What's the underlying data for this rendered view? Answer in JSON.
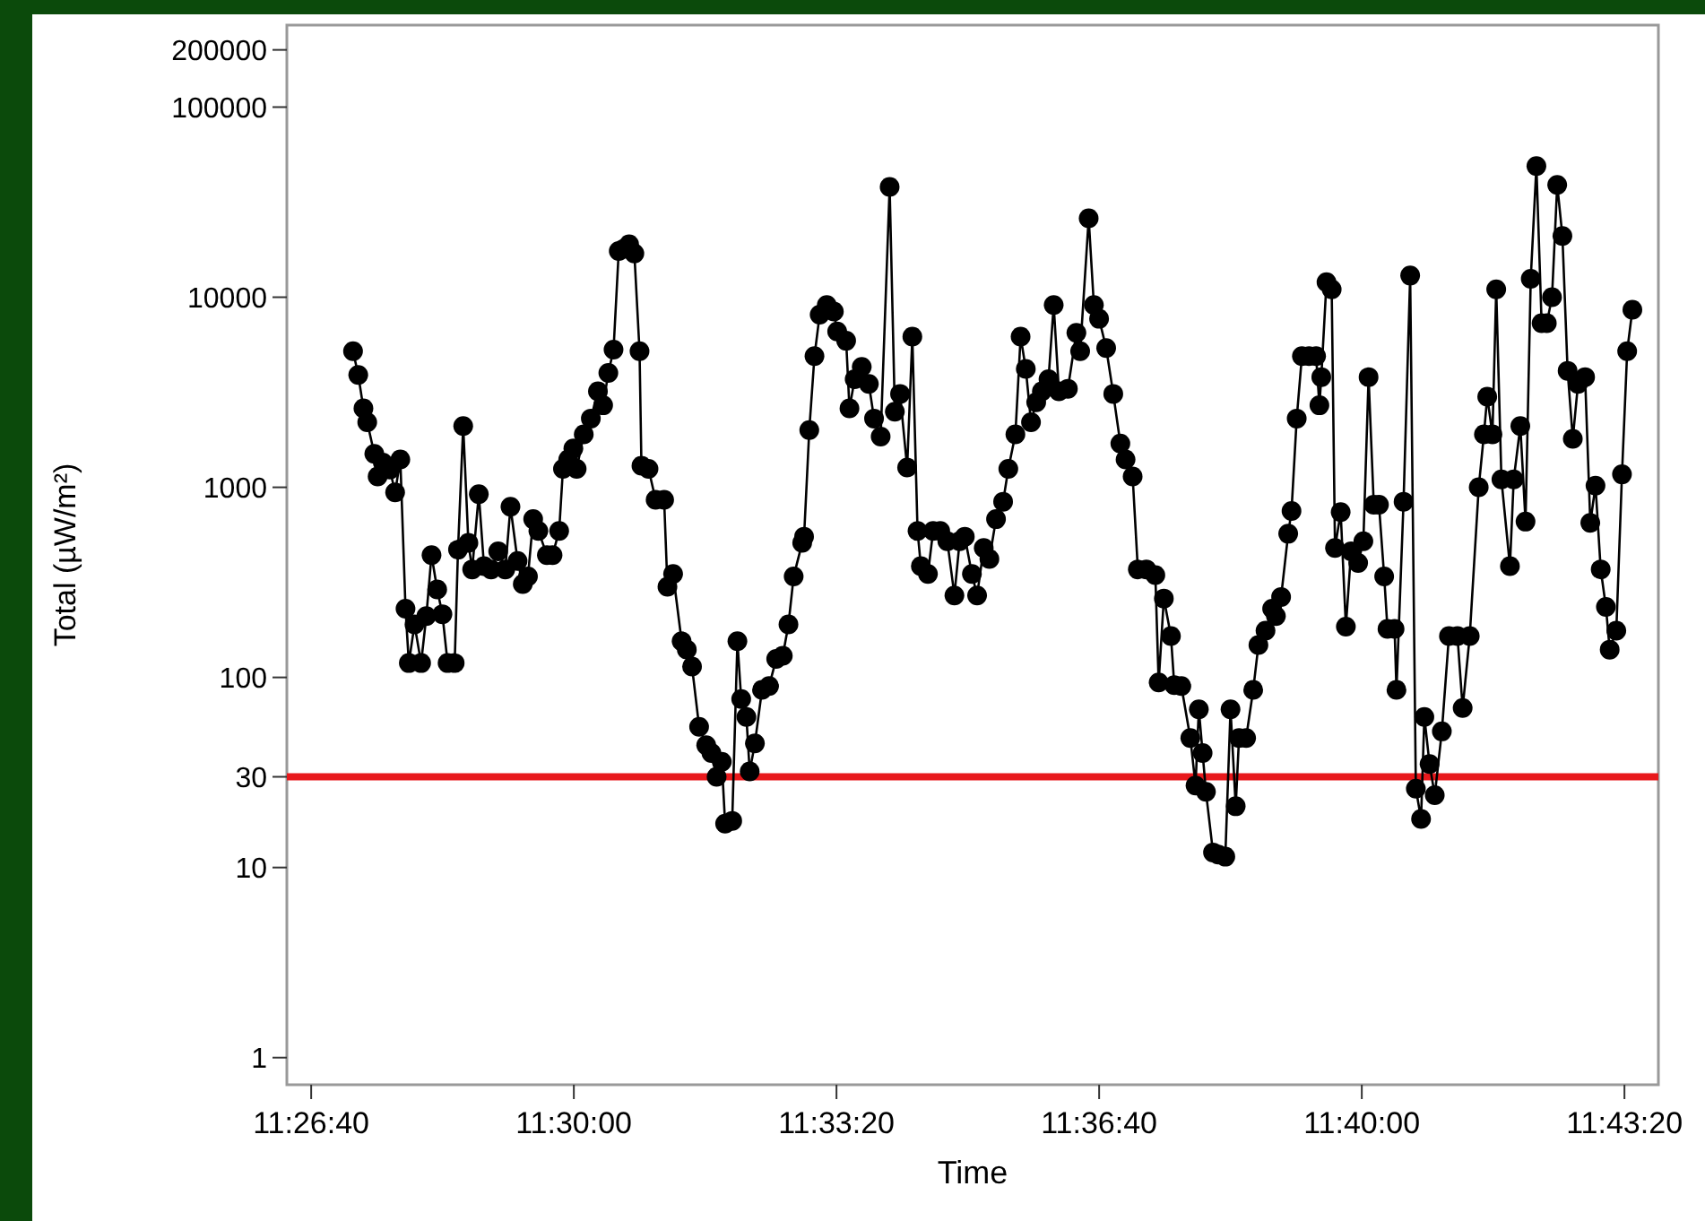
{
  "chart_data": {
    "type": "line",
    "xlabel": "Time",
    "ylabel": "Total (µW/m²)",
    "log": true,
    "marker": "circle",
    "xlim": [
      11.4393,
      11.7294
    ],
    "ylim": [
      0.72,
      270000
    ],
    "xticks": [
      {
        "value": 11.444444,
        "label": "11:26:40"
      },
      {
        "value": 11.5,
        "label": "11:30:00"
      },
      {
        "value": 11.555556,
        "label": "11:33:20"
      },
      {
        "value": 11.611111,
        "label": "11:36:40"
      },
      {
        "value": 11.666667,
        "label": "11:40:00"
      },
      {
        "value": 11.722222,
        "label": "11:43:20"
      }
    ],
    "yticks": [
      1,
      10,
      30,
      100,
      1000,
      10000,
      100000,
      200000
    ],
    "ref_lines": [
      {
        "axis": "y",
        "value": 30,
        "color": "#e8191c"
      }
    ],
    "x": [
      11.4533,
      11.4544,
      11.4555,
      11.4563,
      11.4578,
      11.4585,
      11.4596,
      11.4611,
      11.4622,
      11.4633,
      11.4644,
      11.4651,
      11.4663,
      11.4677,
      11.4688,
      11.4699,
      11.4711,
      11.4722,
      11.4733,
      11.4748,
      11.4755,
      11.4766,
      11.4777,
      11.4785,
      11.4799,
      11.481,
      11.4825,
      11.484,
      11.4855,
      11.4866,
      11.4881,
      11.4892,
      11.4903,
      11.4914,
      11.4925,
      11.4943,
      11.4955,
      11.4969,
      11.4977,
      11.4988,
      11.4999,
      11.5006,
      11.5021,
      11.5036,
      11.5051,
      11.5062,
      11.5073,
      11.5084,
      11.5095,
      11.5106,
      11.5117,
      11.5128,
      11.5139,
      11.5143,
      11.5158,
      11.5173,
      11.5191,
      11.5198,
      11.521,
      11.5228,
      11.5239,
      11.525,
      11.5265,
      11.528,
      11.5291,
      11.5302,
      11.5313,
      11.532,
      11.5335,
      11.5346,
      11.5354,
      11.5365,
      11.5372,
      11.5383,
      11.5398,
      11.5413,
      11.5428,
      11.5442,
      11.5454,
      11.5465,
      11.5483,
      11.5487,
      11.5498,
      11.5509,
      11.552,
      11.5535,
      11.555,
      11.5557,
      11.5576,
      11.5583,
      11.5594,
      11.5609,
      11.5624,
      11.5635,
      11.5649,
      11.5668,
      11.5679,
      11.569,
      11.5705,
      11.5716,
      11.5727,
      11.5734,
      11.5749,
      11.576,
      11.5775,
      11.579,
      11.5805,
      11.5816,
      11.5827,
      11.5842,
      11.5853,
      11.5867,
      11.5879,
      11.5893,
      11.5908,
      11.5919,
      11.5934,
      11.5945,
      11.5956,
      11.5967,
      11.5978,
      11.599,
      11.6004,
      11.6015,
      11.6026,
      11.6045,
      11.6063,
      11.6071,
      11.6089,
      11.61,
      11.6111,
      11.6126,
      11.6141,
      11.6156,
      11.6167,
      11.6182,
      11.6193,
      11.6211,
      11.623,
      11.6237,
      11.6248,
      11.6263,
      11.627,
      11.6285,
      11.6304,
      11.6315,
      11.6322,
      11.633,
      11.6337,
      11.6352,
      11.6363,
      11.6378,
      11.6389,
      11.64,
      11.6407,
      11.6422,
      11.6437,
      11.6448,
      11.6463,
      11.6477,
      11.6485,
      11.6496,
      11.6511,
      11.6518,
      11.6529,
      11.654,
      11.6555,
      11.657,
      11.6577,
      11.6581,
      11.6592,
      11.6603,
      11.661,
      11.6622,
      11.6633,
      11.6644,
      11.6659,
      11.667,
      11.6681,
      11.6692,
      11.6703,
      11.6714,
      11.6721,
      11.6736,
      11.674,
      11.6755,
      11.6769,
      11.6781,
      11.6792,
      11.6799,
      11.681,
      11.6821,
      11.6836,
      11.6851,
      11.6869,
      11.688,
      11.6895,
      11.6914,
      11.6925,
      11.6932,
      11.6943,
      11.6951,
      11.6962,
      11.698,
      11.6988,
      11.7002,
      11.7013,
      11.7024,
      11.7036,
      11.7047,
      11.7058,
      11.7069,
      11.708,
      11.7091,
      11.7102,
      11.7113,
      11.7124,
      11.7139,
      11.715,
      11.7161,
      11.7172,
      11.7183,
      11.7191,
      11.7205,
      11.7217,
      11.7228,
      11.7239
    ],
    "series": [
      {
        "color": "#000000",
        "values": [
          5200,
          3900,
          2600,
          2200,
          1500,
          1140,
          1350,
          1240,
          940,
          1400,
          230,
          119,
          190,
          119,
          210,
          440,
          290,
          215,
          119,
          119,
          470,
          2100,
          510,
          370,
          920,
          385,
          370,
          460,
          370,
          790,
          410,
          310,
          340,
          680,
          590,
          440,
          440,
          590,
          1250,
          1400,
          1600,
          1250,
          1900,
          2300,
          3200,
          2700,
          4000,
          5300,
          17500,
          18000,
          19000,
          17000,
          5200,
          1300,
          1250,
          860,
          860,
          300,
          350,
          155,
          140,
          114,
          55,
          44,
          40,
          30,
          36,
          17,
          17.6,
          155,
          77,
          62,
          32,
          45,
          86,
          90,
          125,
          130,
          190,
          340,
          510,
          550,
          2000,
          4900,
          8100,
          9100,
          8400,
          6600,
          5900,
          2600,
          3700,
          4300,
          3500,
          2300,
          1850,
          38000,
          2500,
          3100,
          1270,
          6200,
          590,
          385,
          350,
          590,
          590,
          520,
          270,
          520,
          550,
          350,
          270,
          480,
          420,
          680,
          840,
          1250,
          1900,
          6200,
          4200,
          2200,
          2800,
          3200,
          3700,
          9100,
          3200,
          3300,
          6500,
          5200,
          26000,
          9100,
          7700,
          5400,
          3100,
          1700,
          1400,
          1140,
          370,
          370,
          345,
          94,
          260,
          165,
          91,
          90,
          48,
          27,
          68,
          40,
          25,
          12,
          11.7,
          11.4,
          68,
          21,
          48,
          48,
          86,
          148,
          176,
          230,
          210,
          265,
          570,
          750,
          2300,
          4900,
          4900,
          4900,
          2700,
          3800,
          12000,
          11000,
          480,
          740,
          185,
          460,
          400,
          520,
          3800,
          810,
          810,
          340,
          180,
          180,
          86,
          840,
          13000,
          26,
          18,
          62,
          35,
          24,
          52,
          165,
          165,
          69,
          165,
          1000,
          1900,
          3000,
          1900,
          11000,
          1100,
          385,
          1100,
          2100,
          660,
          12500,
          49000,
          7300,
          7300,
          10000,
          39000,
          21000,
          4100,
          1800,
          3500,
          3800,
          650,
          1020,
          370,
          235,
          140,
          176,
          1170,
          5200,
          8600
        ]
      }
    ]
  }
}
